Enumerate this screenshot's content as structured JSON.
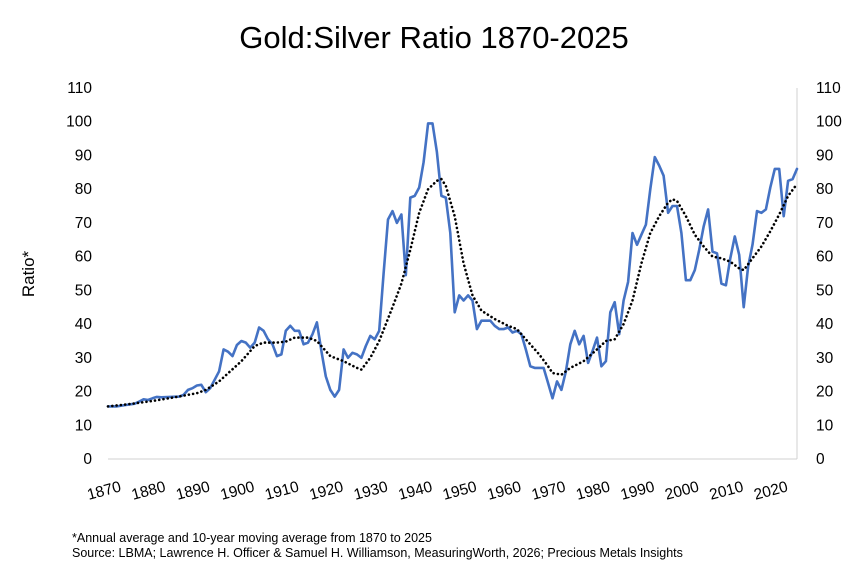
{
  "chart_data": {
    "type": "line",
    "title": "Gold:Silver Ratio 1870-2025",
    "ylabel": "Ratio*",
    "xlabel": "",
    "xlim": [
      1870,
      2025
    ],
    "ylim": [
      0,
      110
    ],
    "x_ticks": [
      "1870",
      "1880",
      "1890",
      "1900",
      "1910",
      "1920",
      "1930",
      "1940",
      "1950",
      "1960",
      "1970",
      "1980",
      "1990",
      "2000",
      "2010",
      "2020"
    ],
    "y_ticks": [
      "0",
      "10",
      "20",
      "30",
      "40",
      "50",
      "60",
      "70",
      "80",
      "90",
      "100",
      "110"
    ],
    "secondary_y_axis": true,
    "grid": false,
    "legend": "none",
    "series": [
      {
        "style": "solid",
        "color": "#4472C4",
        "points": [
          [
            1870,
            15.6
          ],
          [
            1872,
            15.6
          ],
          [
            1874,
            16.0
          ],
          [
            1876,
            16.4
          ],
          [
            1877,
            17.0
          ],
          [
            1878,
            17.7
          ],
          [
            1879,
            17.5
          ],
          [
            1880,
            18.0
          ],
          [
            1881,
            18.4
          ],
          [
            1882,
            18.3
          ],
          [
            1884,
            18.4
          ],
          [
            1886,
            18.5
          ],
          [
            1887,
            19.0
          ],
          [
            1888,
            20.5
          ],
          [
            1889,
            21.0
          ],
          [
            1890,
            21.8
          ],
          [
            1891,
            22.0
          ],
          [
            1892,
            19.8
          ],
          [
            1893,
            21.0
          ],
          [
            1894,
            23.5
          ],
          [
            1895,
            26.0
          ],
          [
            1896,
            32.5
          ],
          [
            1897,
            31.8
          ],
          [
            1898,
            30.5
          ],
          [
            1899,
            33.8
          ],
          [
            1900,
            35.0
          ],
          [
            1901,
            34.5
          ],
          [
            1902,
            33.0
          ],
          [
            1903,
            34.5
          ],
          [
            1904,
            39.0
          ],
          [
            1905,
            38.0
          ],
          [
            1906,
            35.5
          ],
          [
            1907,
            34.0
          ],
          [
            1908,
            30.5
          ],
          [
            1909,
            31.0
          ],
          [
            1910,
            38.0
          ],
          [
            1911,
            39.5
          ],
          [
            1912,
            38.0
          ],
          [
            1913,
            38.0
          ],
          [
            1914,
            34.0
          ],
          [
            1915,
            34.5
          ],
          [
            1916,
            37.0
          ],
          [
            1917,
            40.5
          ],
          [
            1918,
            32.0
          ],
          [
            1919,
            24.5
          ],
          [
            1920,
            20.5
          ],
          [
            1921,
            18.5
          ],
          [
            1922,
            20.5
          ],
          [
            1923,
            32.5
          ],
          [
            1924,
            30.0
          ],
          [
            1925,
            31.5
          ],
          [
            1926,
            31.0
          ],
          [
            1927,
            30.0
          ],
          [
            1928,
            33.5
          ],
          [
            1929,
            36.5
          ],
          [
            1930,
            35.5
          ],
          [
            1931,
            38.0
          ],
          [
            1932,
            55.0
          ],
          [
            1933,
            71.0
          ],
          [
            1934,
            73.5
          ],
          [
            1935,
            70.0
          ],
          [
            1936,
            72.5
          ],
          [
            1937,
            54.5
          ],
          [
            1938,
            77.5
          ],
          [
            1939,
            78.0
          ],
          [
            1940,
            80.5
          ],
          [
            1941,
            88.0
          ],
          [
            1942,
            99.5
          ],
          [
            1943,
            99.5
          ],
          [
            1944,
            91.0
          ],
          [
            1945,
            78.0
          ],
          [
            1946,
            77.5
          ],
          [
            1947,
            67.0
          ],
          [
            1948,
            43.5
          ],
          [
            1949,
            48.5
          ],
          [
            1950,
            47.0
          ],
          [
            1951,
            48.5
          ],
          [
            1952,
            47.0
          ],
          [
            1953,
            38.5
          ],
          [
            1954,
            41.0
          ],
          [
            1955,
            41.0
          ],
          [
            1956,
            41.0
          ],
          [
            1957,
            39.5
          ],
          [
            1958,
            38.5
          ],
          [
            1959,
            38.5
          ],
          [
            1960,
            39.0
          ],
          [
            1961,
            37.5
          ],
          [
            1962,
            38.0
          ],
          [
            1963,
            37.0
          ],
          [
            1964,
            32.5
          ],
          [
            1965,
            27.5
          ],
          [
            1966,
            27.0
          ],
          [
            1968,
            27.0
          ],
          [
            1969,
            22.5
          ],
          [
            1970,
            18.0
          ],
          [
            1971,
            23.0
          ],
          [
            1972,
            20.5
          ],
          [
            1973,
            26.0
          ],
          [
            1974,
            34.0
          ],
          [
            1975,
            38.0
          ],
          [
            1976,
            34.0
          ],
          [
            1977,
            36.5
          ],
          [
            1978,
            28.5
          ],
          [
            1979,
            32.0
          ],
          [
            1980,
            36.0
          ],
          [
            1981,
            27.5
          ],
          [
            1982,
            29.0
          ],
          [
            1983,
            43.5
          ],
          [
            1984,
            46.5
          ],
          [
            1985,
            37.0
          ],
          [
            1986,
            47.0
          ],
          [
            1987,
            52.5
          ],
          [
            1988,
            67.0
          ],
          [
            1989,
            63.5
          ],
          [
            1990,
            66.5
          ],
          [
            1991,
            69.5
          ],
          [
            1992,
            80.0
          ],
          [
            1993,
            89.5
          ],
          [
            1994,
            87.0
          ],
          [
            1995,
            84.0
          ],
          [
            1996,
            73.0
          ],
          [
            1997,
            75.0
          ],
          [
            1998,
            75.0
          ],
          [
            1999,
            67.0
          ],
          [
            2000,
            53.0
          ],
          [
            2001,
            53.0
          ],
          [
            2002,
            56.0
          ],
          [
            2003,
            62.0
          ],
          [
            2004,
            69.0
          ],
          [
            2005,
            74.0
          ],
          [
            2006,
            61.5
          ],
          [
            2007,
            61.0
          ],
          [
            2008,
            52.0
          ],
          [
            2009,
            51.5
          ],
          [
            2010,
            59.5
          ],
          [
            2011,
            66.0
          ],
          [
            2012,
            60.5
          ],
          [
            2013,
            45.0
          ],
          [
            2014,
            57.0
          ],
          [
            2015,
            63.5
          ],
          [
            2016,
            73.5
          ],
          [
            2017,
            73.0
          ],
          [
            2018,
            74.0
          ],
          [
            2019,
            80.5
          ],
          [
            2020,
            86.0
          ],
          [
            2021,
            86.0
          ],
          [
            2022,
            72.0
          ],
          [
            2023,
            82.5
          ],
          [
            2024,
            83.0
          ],
          [
            2025,
            86.0
          ]
        ]
      },
      {
        "style": "dotted",
        "color": "#000000",
        "points": [
          [
            1870,
            15.6
          ],
          [
            1875,
            16.3
          ],
          [
            1880,
            17.2
          ],
          [
            1885,
            18.3
          ],
          [
            1890,
            19.5
          ],
          [
            1892,
            20.5
          ],
          [
            1895,
            23.0
          ],
          [
            1900,
            29.0
          ],
          [
            1903,
            33.5
          ],
          [
            1905,
            34.5
          ],
          [
            1908,
            34.5
          ],
          [
            1910,
            34.8
          ],
          [
            1912,
            36.0
          ],
          [
            1915,
            36.0
          ],
          [
            1917,
            35.0
          ],
          [
            1920,
            30.5
          ],
          [
            1923,
            29.0
          ],
          [
            1926,
            27.0
          ],
          [
            1927,
            26.5
          ],
          [
            1929,
            30.0
          ],
          [
            1931,
            35.0
          ],
          [
            1934,
            45.0
          ],
          [
            1936,
            52.0
          ],
          [
            1938,
            62.0
          ],
          [
            1940,
            73.0
          ],
          [
            1942,
            80.0
          ],
          [
            1944,
            82.5
          ],
          [
            1945,
            83.0
          ],
          [
            1946,
            81.0
          ],
          [
            1948,
            72.0
          ],
          [
            1950,
            58.0
          ],
          [
            1952,
            48.5
          ],
          [
            1954,
            44.0
          ],
          [
            1957,
            41.5
          ],
          [
            1960,
            39.5
          ],
          [
            1962,
            38.5
          ],
          [
            1964,
            35.5
          ],
          [
            1967,
            31.0
          ],
          [
            1969,
            27.5
          ],
          [
            1970,
            25.5
          ],
          [
            1972,
            25.0
          ],
          [
            1974,
            27.0
          ],
          [
            1977,
            29.0
          ],
          [
            1980,
            32.5
          ],
          [
            1982,
            35.0
          ],
          [
            1984,
            35.5
          ],
          [
            1986,
            40.0
          ],
          [
            1988,
            47.0
          ],
          [
            1990,
            58.0
          ],
          [
            1992,
            67.0
          ],
          [
            1994,
            72.0
          ],
          [
            1996,
            76.0
          ],
          [
            1997,
            77.0
          ],
          [
            1998,
            76.5
          ],
          [
            2000,
            72.0
          ],
          [
            2002,
            66.5
          ],
          [
            2004,
            63.0
          ],
          [
            2006,
            60.0
          ],
          [
            2008,
            59.5
          ],
          [
            2010,
            58.5
          ],
          [
            2012,
            56.5
          ],
          [
            2013,
            56.0
          ],
          [
            2015,
            59.5
          ],
          [
            2017,
            63.0
          ],
          [
            2019,
            67.5
          ],
          [
            2021,
            72.5
          ],
          [
            2023,
            78.0
          ],
          [
            2025,
            81.5
          ]
        ]
      }
    ]
  },
  "footnotes": {
    "note": "*Annual average and 10-year moving average from 1870 to 2025",
    "source": "Source: LBMA; Lawrence H. Officer & Samuel H. Williamson, MeasuringWorth, 2026; Precious Metals Insights"
  }
}
